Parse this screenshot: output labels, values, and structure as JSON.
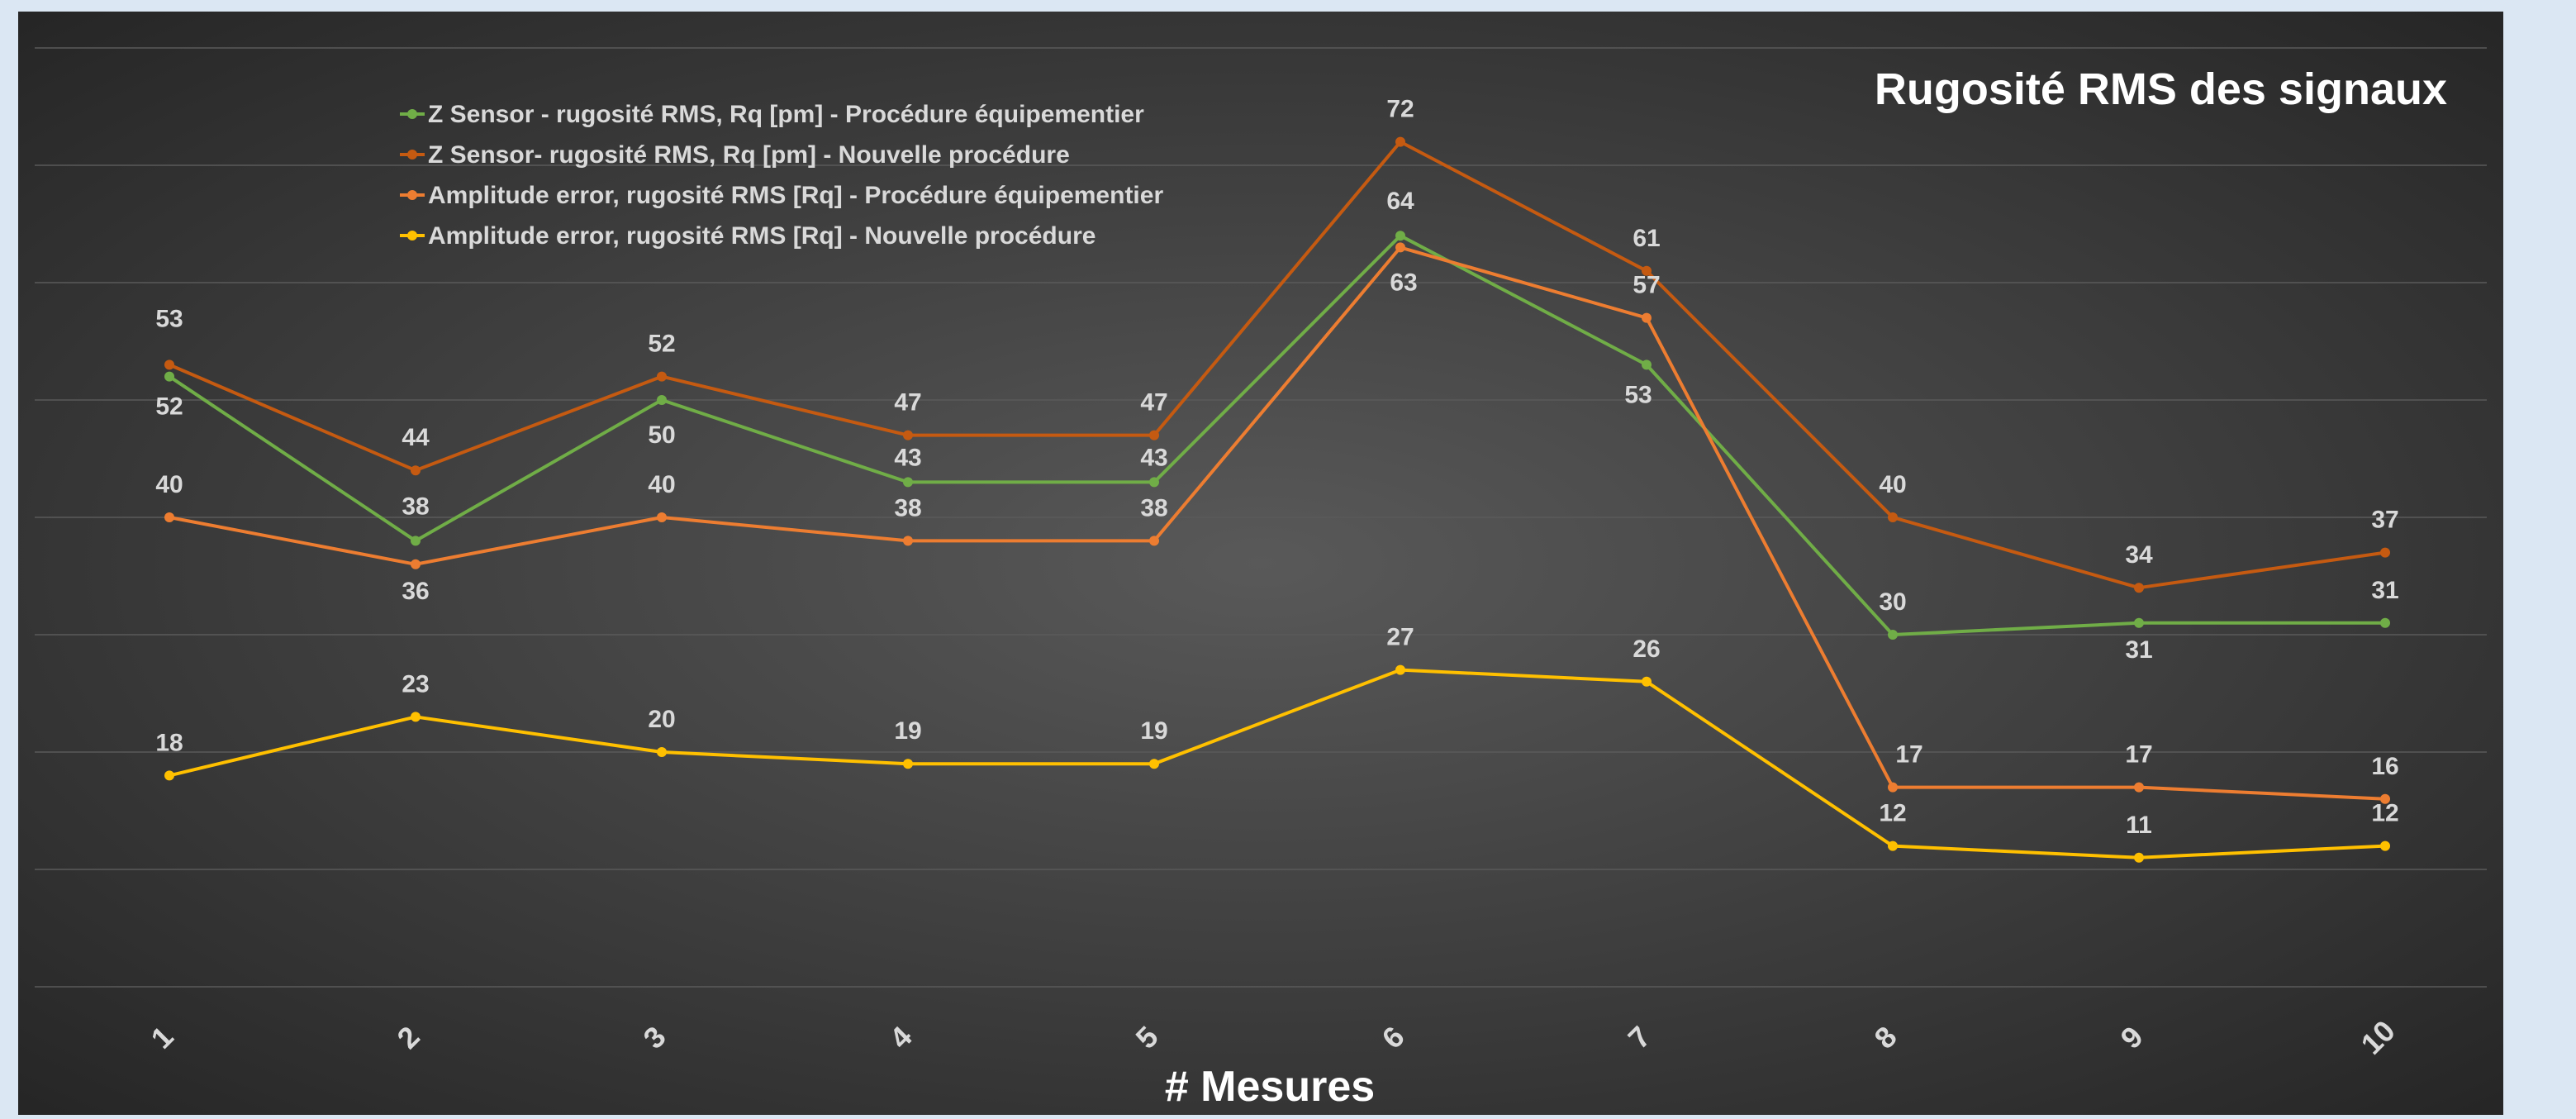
{
  "chart_data": {
    "type": "line",
    "title": "Rugosité RMS des signaux",
    "xlabel": "# Mesures",
    "ylabel": "",
    "categories": [
      "1",
      "2",
      "3",
      "4",
      "5",
      "6",
      "7",
      "8",
      "9",
      "10"
    ],
    "ylim": [
      0,
      80
    ],
    "grid": true,
    "legend_position": "top-left",
    "background_color": "#3a3a3a",
    "series": [
      {
        "name": "Z Sensor - rugosité RMS, Rq [pm] - Procédure équipementier",
        "color": "#70ad47",
        "values": [
          52,
          38,
          50,
          43,
          43,
          64,
          53,
          30,
          31,
          31
        ]
      },
      {
        "name": "Z Sensor- rugosité RMS, Rq [pm] - Nouvelle procédure",
        "color": "#c55a11",
        "values": [
          53,
          44,
          52,
          47,
          47,
          72,
          61,
          40,
          34,
          37
        ]
      },
      {
        "name": "Amplitude error, rugosité RMS [Rq] - Procédure équipementier",
        "color": "#ed7d31",
        "values": [
          40,
          36,
          40,
          38,
          38,
          63,
          57,
          17,
          17,
          16
        ]
      },
      {
        "name": "Amplitude error, rugosité RMS [Rq] - Nouvelle procédure",
        "color": "#ffc000",
        "values": [
          18,
          23,
          20,
          19,
          19,
          27,
          26,
          12,
          11,
          12
        ]
      }
    ]
  }
}
